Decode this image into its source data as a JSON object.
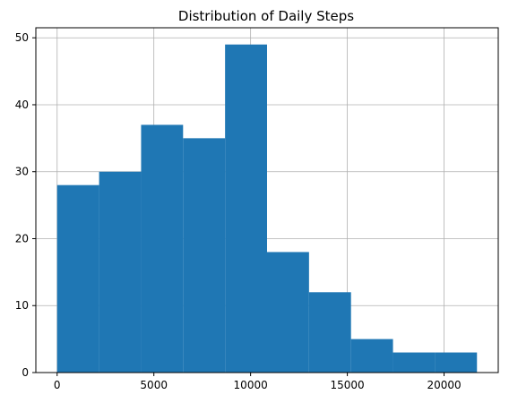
{
  "chart_data": {
    "type": "bar",
    "title": "Distribution of Daily Steps",
    "xlabel": "",
    "ylabel": "",
    "xlim": [
      -1100,
      22800
    ],
    "ylim": [
      0,
      51.5
    ],
    "xticks": [
      0,
      5000,
      10000,
      15000,
      20000
    ],
    "yticks": [
      0,
      10,
      20,
      30,
      40,
      50
    ],
    "grid": true,
    "bar_color": "#1f77b4",
    "bins": [
      {
        "x0": 0,
        "x1": 2170,
        "value": 28
      },
      {
        "x0": 2170,
        "x1": 4340,
        "value": 30
      },
      {
        "x0": 4340,
        "x1": 6510,
        "value": 37
      },
      {
        "x0": 6510,
        "x1": 8680,
        "value": 35
      },
      {
        "x0": 8680,
        "x1": 10850,
        "value": 49
      },
      {
        "x0": 10850,
        "x1": 13020,
        "value": 18
      },
      {
        "x0": 13020,
        "x1": 15190,
        "value": 12
      },
      {
        "x0": 15190,
        "x1": 17360,
        "value": 5
      },
      {
        "x0": 17360,
        "x1": 19530,
        "value": 3
      },
      {
        "x0": 19530,
        "x1": 21700,
        "value": 3
      }
    ]
  }
}
